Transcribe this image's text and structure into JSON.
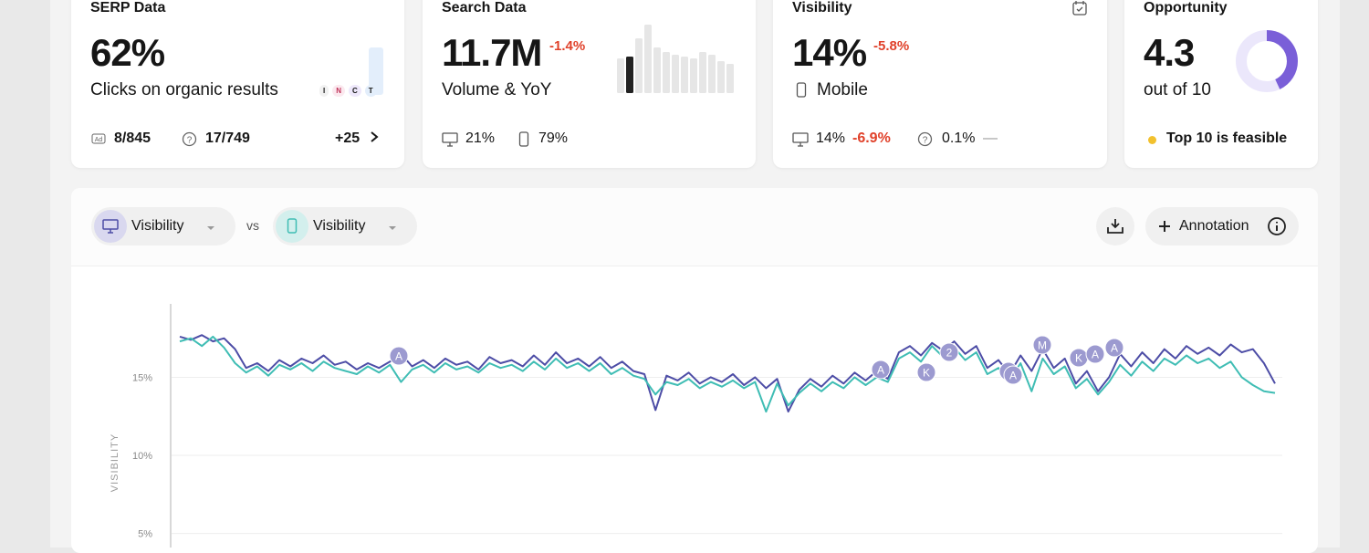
{
  "cards": [
    {
      "title": "SERP Data",
      "value": "62%",
      "caption": "Clicks on organic results",
      "intents": [
        "I",
        "N",
        "C",
        "T"
      ],
      "footer": {
        "ads": "8/845",
        "questions": "17/749",
        "more": "+25"
      }
    },
    {
      "title": "Search Data",
      "value": "11.7M",
      "change": "-1.4%",
      "caption": "Volume & YoY",
      "trend": {
        "values": [
          38,
          40,
          60,
          75,
          50,
          45,
          42,
          40,
          38,
          45,
          42,
          35,
          32
        ],
        "colors": [
          "#e6e6e6",
          "#222222",
          "#e6e6e6",
          "#e6e6e6",
          "#e6e6e6",
          "#e6e6e6",
          "#e6e6e6",
          "#e6e6e6",
          "#e6e6e6",
          "#e6e6e6",
          "#e6e6e6",
          "#e6e6e6",
          "#e6e6e6"
        ]
      },
      "footer": {
        "desktop": "21%",
        "mobile": "79%"
      }
    },
    {
      "title": "Visibility",
      "value": "14%",
      "change": "-5.8%",
      "caption": "Mobile",
      "footer": {
        "desktop": "14%",
        "desktop_change": "-6.9%",
        "questions": "0.1%",
        "questions_change": "—"
      }
    },
    {
      "title": "Opportunity",
      "value": 4.3,
      "caption": "out of",
      "max": 10,
      "footer": "Top 10 is feasible",
      "colors": [
        "#7a5fd8",
        "#ebe7fb"
      ]
    }
  ],
  "toolbar": {
    "vs": "vs",
    "annotation": "Annotation"
  },
  "chart_data": {
    "type": "line",
    "y_label": "VISIBILITY",
    "ylim": [
      4.1,
      19.7
    ],
    "yticks": [
      {
        "value": 5,
        "label": "5%"
      },
      {
        "value": 10,
        "label": "10%"
      },
      {
        "value": 15,
        "label": "15%"
      }
    ],
    "grid": true,
    "annotations": [
      "A",
      "A",
      "K",
      "2",
      "A",
      "A",
      "M",
      "K",
      "A",
      "A"
    ],
    "series": [
      {
        "name": "Visibility",
        "color": "#4d4da6",
        "values": [
          17.6,
          17.4,
          17.7,
          17.3,
          17.5,
          16.8,
          15.6,
          15.9,
          15.4,
          16.1,
          15.7,
          16.2,
          15.9,
          16.4,
          15.8,
          16.0,
          15.5,
          15.9,
          15.6,
          16.0,
          16.5,
          15.7,
          16.1,
          15.6,
          16.2,
          15.8,
          16.0,
          15.5,
          16.3,
          15.9,
          16.1,
          15.7,
          16.4,
          15.8,
          16.6,
          15.9,
          16.2,
          15.7,
          16.3,
          15.6,
          16.0,
          15.4,
          15.2,
          12.9,
          15.1,
          14.8,
          15.3,
          14.6,
          15.0,
          14.7,
          15.2,
          14.5,
          15.0,
          14.3,
          14.9,
          12.8,
          14.2,
          14.9,
          14.4,
          15.1,
          14.6,
          15.3,
          14.8,
          15.4,
          14.9,
          16.6,
          17.0,
          16.4,
          17.2,
          16.7,
          17.3,
          16.5,
          17.0,
          15.6,
          16.1,
          15.2,
          16.4,
          15.4,
          16.8,
          15.6,
          16.2,
          14.6,
          15.4,
          14.1,
          15.0,
          16.5,
          15.7,
          16.6,
          15.9,
          16.8,
          16.2,
          17.0,
          16.5,
          16.9,
          16.4,
          17.1,
          16.6,
          16.8,
          15.9,
          14.6
        ]
      },
      {
        "name": "Visibility",
        "color": "#3fbdb4",
        "values": [
          17.3,
          17.5,
          17.0,
          17.6,
          16.9,
          15.9,
          15.3,
          15.7,
          15.1,
          15.8,
          15.5,
          15.9,
          15.4,
          16.0,
          15.6,
          15.4,
          15.2,
          15.7,
          15.3,
          15.8,
          14.7,
          15.5,
          15.8,
          15.3,
          15.9,
          15.5,
          15.7,
          15.3,
          15.9,
          15.6,
          15.8,
          15.4,
          16.0,
          15.5,
          16.2,
          15.6,
          15.9,
          15.4,
          15.9,
          15.2,
          15.6,
          15.1,
          14.9,
          13.9,
          14.7,
          14.5,
          14.9,
          14.3,
          14.7,
          14.4,
          14.8,
          14.3,
          14.7,
          12.8,
          14.6,
          13.2,
          14.0,
          14.6,
          14.1,
          14.7,
          14.3,
          15.0,
          14.5,
          15.0,
          14.7,
          16.2,
          16.6,
          16.0,
          17.0,
          16.3,
          16.9,
          16.1,
          16.6,
          15.2,
          15.6,
          14.8,
          15.9,
          14.1,
          16.2,
          15.2,
          15.7,
          14.3,
          14.9,
          13.9,
          14.7,
          15.8,
          15.1,
          16.0,
          15.4,
          16.2,
          15.8,
          16.4,
          15.9,
          16.2,
          15.6,
          16.0,
          15.0,
          14.5,
          14.1,
          14.0
        ]
      }
    ]
  }
}
